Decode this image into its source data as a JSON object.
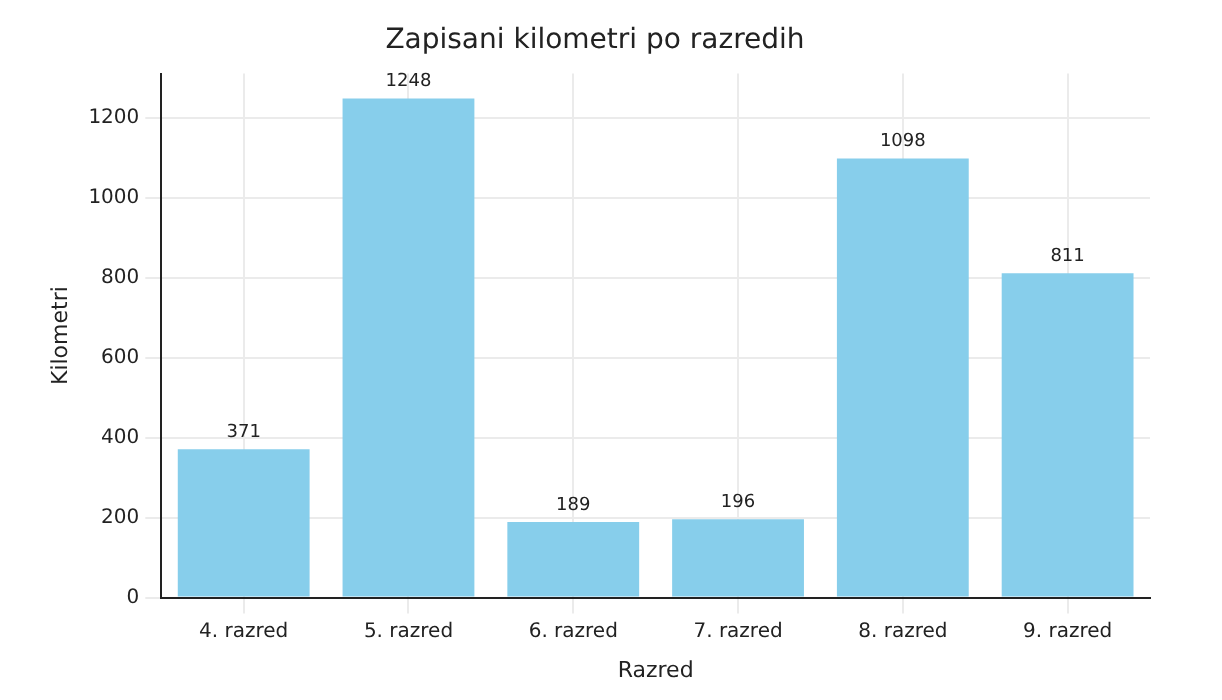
{
  "chart_data": {
    "type": "bar",
    "title": "Zapisani kilometri po razredih",
    "xlabel": "Razred",
    "ylabel": "Kilometri",
    "categories": [
      "4. razred",
      "5. razred",
      "6. razred",
      "7. razred",
      "8. razred",
      "9. razred"
    ],
    "values": [
      371,
      1248,
      189,
      196,
      1098,
      811
    ],
    "color": "#87ceeb",
    "ylim": [
      0,
      1310
    ],
    "yticks": [
      0,
      200,
      400,
      600,
      800,
      1000,
      1200
    ],
    "grid": true,
    "data_labels": true
  }
}
